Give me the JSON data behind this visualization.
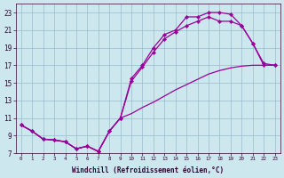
{
  "xlabel": "Windchill (Refroidissement éolien,°C)",
  "background_color": "#cce8ee",
  "grid_color": "#99bbcc",
  "line_color": "#990099",
  "ylim": [
    7,
    24
  ],
  "yticks": [
    7,
    9,
    11,
    13,
    15,
    17,
    19,
    21,
    23
  ],
  "xlim": [
    -0.5,
    23.5
  ],
  "xticks": [
    0,
    1,
    2,
    3,
    4,
    5,
    6,
    7,
    8,
    9,
    10,
    11,
    12,
    13,
    14,
    15,
    16,
    17,
    18,
    19,
    20,
    21,
    22,
    23
  ],
  "curve_top": [
    10.2,
    9.5,
    8.6,
    8.5,
    8.3,
    7.5,
    7.8,
    7.2,
    9.5,
    11.0,
    15.5,
    17.0,
    19.0,
    20.5,
    21.0,
    22.5,
    22.5,
    23.0,
    23.0,
    22.8,
    21.5,
    19.5,
    17.0,
    17.0
  ],
  "curve_mid": [
    10.2,
    9.5,
    8.6,
    8.5,
    8.3,
    7.5,
    7.8,
    7.2,
    9.5,
    11.0,
    15.2,
    16.8,
    18.5,
    20.0,
    20.8,
    21.5,
    22.0,
    22.5,
    22.0,
    22.0,
    21.5,
    19.5,
    17.2,
    17.0
  ],
  "curve_bot": [
    10.2,
    9.5,
    8.6,
    8.5,
    8.3,
    7.5,
    7.8,
    7.2,
    9.5,
    11.0,
    11.5,
    12.2,
    12.8,
    13.5,
    14.2,
    14.8,
    15.4,
    16.0,
    16.4,
    16.7,
    16.9,
    17.0,
    17.0,
    17.0
  ],
  "markers_top_start": 0,
  "markers_top_end": 23,
  "markers_mid_start": 0,
  "markers_mid_end": 23,
  "markers_bot": false
}
